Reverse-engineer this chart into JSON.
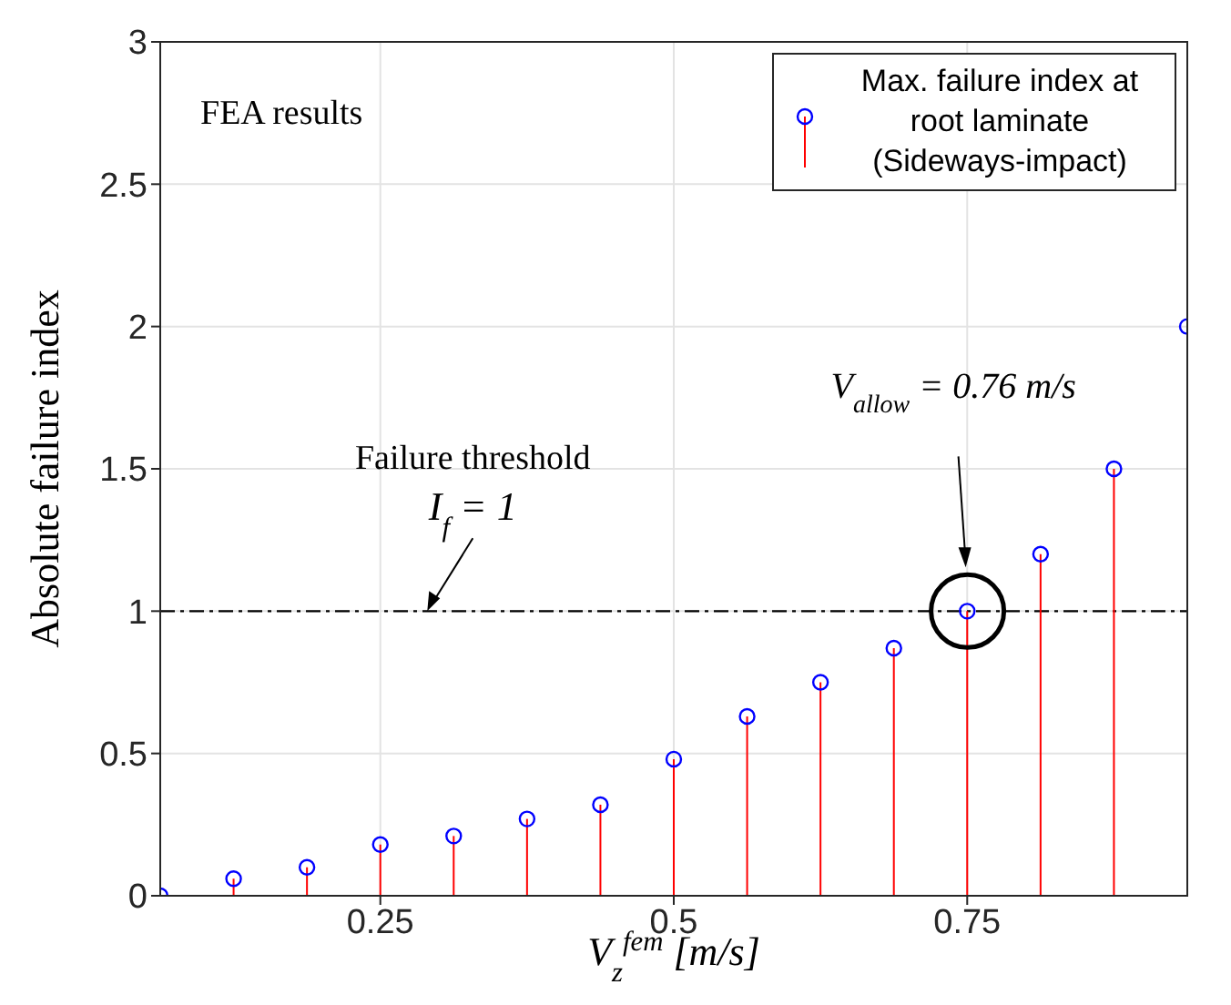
{
  "chart_data": {
    "type": "lollipop",
    "xlabel": "V$_{z}$$^{fem}$ [m/s]",
    "ylabel": "Absolute failure index",
    "x": [
      0.0625,
      0.125,
      0.1875,
      0.25,
      0.3125,
      0.375,
      0.4375,
      0.5,
      0.5625,
      0.625,
      0.6875,
      0.75,
      0.8125,
      0.875,
      0.9375
    ],
    "series": [
      {
        "name": "Max. failure index at root laminate (Sideways-impact)",
        "color": "#0000ff",
        "values": [
          0,
          0.06,
          0.1,
          0.18,
          0.21,
          0.27,
          0.32,
          0.48,
          0.63,
          0.75,
          0.87,
          1,
          1.2,
          1.5,
          2
        ]
      }
    ],
    "marker": "circle",
    "xlim": [
      0.0625,
      0.9375
    ],
    "xticks": [
      0.25,
      0.5,
      0.75
    ],
    "ylim": [
      0,
      3
    ],
    "yticks": [
      0,
      0.5,
      1,
      1.5,
      2,
      2.5,
      3
    ],
    "grid": true,
    "legend": "top right",
    "ref_lines": [
      {
        "axis": "y",
        "value": 1,
        "label": "Failure threshold",
        "line_style": "dashdot",
        "color": "#000000"
      }
    ],
    "annotations": [
      "FEA results",
      "I$_{f}$ = 1",
      "V$_{allow}$ = 0.76 m/s"
    ]
  }
}
